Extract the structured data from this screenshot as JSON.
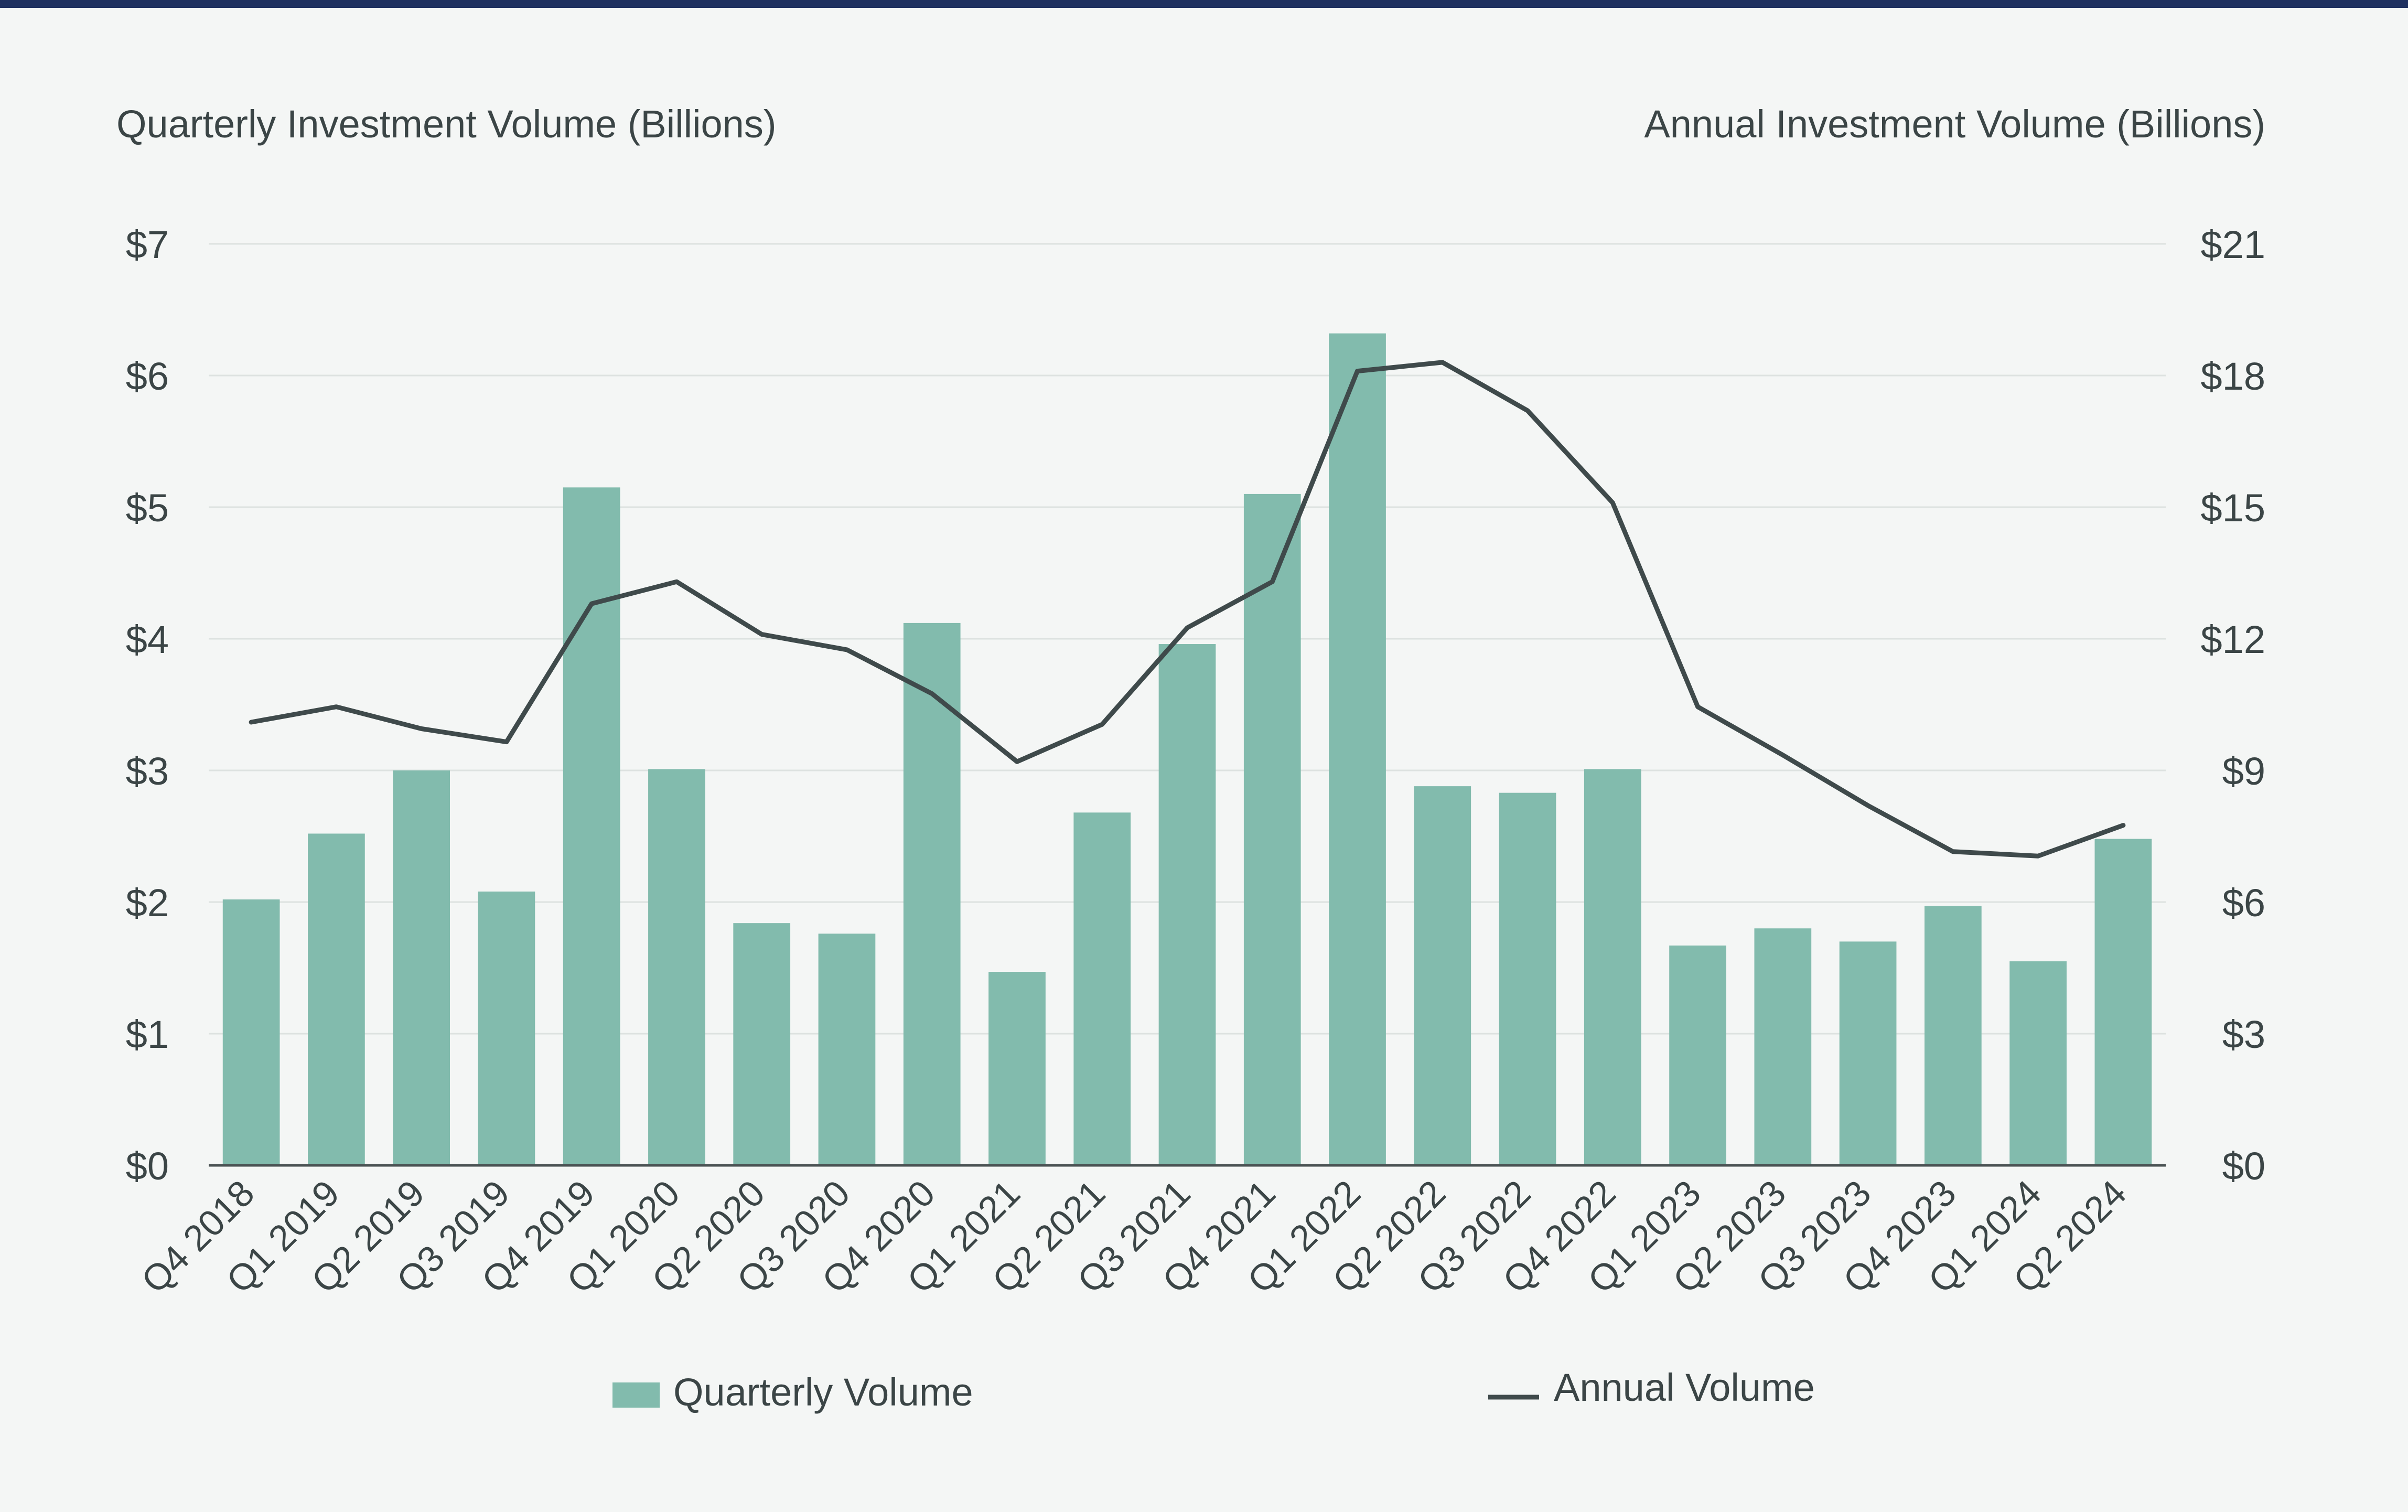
{
  "chart_data": {
    "type": "bar",
    "left_axis_title": "Quarterly Investment Volume (Billions)",
    "right_axis_title": "Annual Investment Volume (Billions)",
    "categories": [
      "Q4 2018",
      "Q1 2019",
      "Q2 2019",
      "Q3 2019",
      "Q4 2019",
      "Q1 2020",
      "Q2 2020",
      "Q3 2020",
      "Q4 2020",
      "Q1 2021",
      "Q2 2021",
      "Q3 2021",
      "Q4 2021",
      "Q1 2022",
      "Q2 2022",
      "Q3 2022",
      "Q4 2022",
      "Q1 2023",
      "Q2 2023",
      "Q3 2023",
      "Q4 2023",
      "Q1 2024",
      "Q2 2024"
    ],
    "series": [
      {
        "name": "Quarterly Volume",
        "type": "bar",
        "axis": "left",
        "color": "#82bbad",
        "values": [
          2.02,
          2.52,
          3.0,
          2.08,
          5.15,
          3.01,
          1.84,
          1.76,
          4.12,
          1.47,
          2.68,
          3.96,
          5.1,
          6.32,
          2.88,
          2.83,
          3.01,
          1.67,
          1.8,
          1.7,
          1.97,
          1.55,
          2.48
        ]
      },
      {
        "name": "Annual Volume",
        "type": "line",
        "axis": "right",
        "color": "#3f4a4b",
        "values": [
          10.1,
          10.45,
          9.95,
          9.65,
          12.8,
          13.3,
          12.1,
          11.75,
          10.75,
          9.2,
          10.05,
          12.25,
          13.3,
          18.1,
          18.3,
          17.2,
          15.1,
          10.45,
          9.35,
          8.2,
          7.15,
          7.05,
          7.75
        ]
      }
    ],
    "left_axis": {
      "ylim": [
        0,
        7
      ],
      "ticks": [
        0,
        1,
        2,
        3,
        4,
        5,
        6,
        7
      ],
      "tick_labels": [
        "$0",
        "$1",
        "$2",
        "$3",
        "$4",
        "$5",
        "$6",
        "$7"
      ]
    },
    "right_axis": {
      "ylim": [
        0,
        21
      ],
      "ticks": [
        0,
        3,
        6,
        9,
        12,
        15,
        18,
        21
      ],
      "tick_labels": [
        "$0",
        "$3",
        "$6",
        "$9",
        "$12",
        "$15",
        "$18",
        "$21"
      ]
    },
    "legend": {
      "placement": "bottom",
      "items": [
        "Quarterly Volume",
        "Annual Volume"
      ]
    },
    "grid": true,
    "colors": {
      "background": "#f4f6f5",
      "top_rule": "#1f3160",
      "text": "#3b4546",
      "grid": "#dde2e0",
      "axis": "#4a5253"
    }
  }
}
